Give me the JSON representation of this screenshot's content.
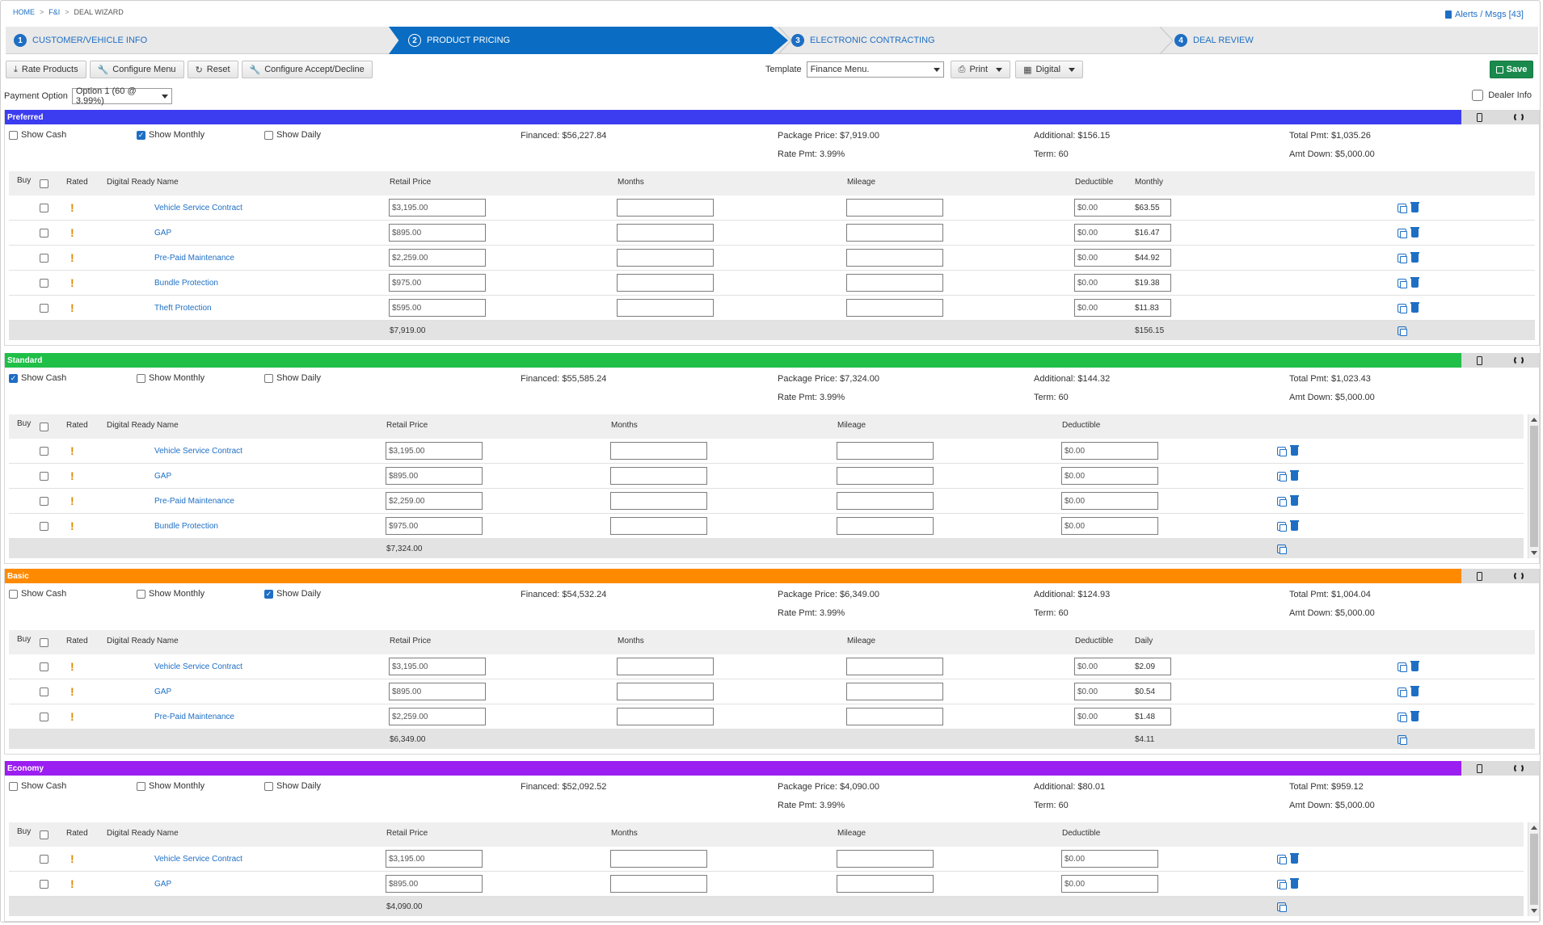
{
  "breadcrumb": [
    "HOME",
    "F&I",
    "DEAL WIZARD"
  ],
  "alerts": "Alerts / Msgs [43]",
  "wizard": [
    {
      "num": "1",
      "label": "CUSTOMER/VEHICLE INFO"
    },
    {
      "num": "2",
      "label": "PRODUCT PRICING"
    },
    {
      "num": "3",
      "label": "ELECTRONIC CONTRACTING"
    },
    {
      "num": "4",
      "label": "DEAL REVIEW"
    }
  ],
  "toolbar": {
    "rate_products": "Rate Products",
    "configure_menu": "Configure Menu",
    "reset": "Reset",
    "configure_accept": "Configure Accept/Decline",
    "template_label": "Template",
    "template_value": "Finance Menu.",
    "print": "Print",
    "digital": "Digital",
    "save": "Save"
  },
  "payment_option": {
    "label": "Payment Option",
    "value": "Option 1 (60 @ 3.99%)"
  },
  "dealer_info": "Dealer Info",
  "labels": {
    "show_cash": "Show Cash",
    "show_monthly": "Show Monthly",
    "show_daily": "Show Daily",
    "buy": "Buy",
    "rated": "Rated",
    "digital_ready": "Digital Ready",
    "name": "Name",
    "retail_price": "Retail Price",
    "months": "Months",
    "mileage": "Mileage",
    "deductible": "Deductible"
  },
  "packages": [
    {
      "name": "Preferred",
      "color": "#3c3cf0",
      "show_cash": false,
      "show_monthly": true,
      "show_daily": false,
      "financed": "Financed: $56,227.84",
      "package_price": "Package Price: $7,919.00",
      "rate_pmt": "Rate Pmt: 3.99%",
      "additional": "Additional: $156.15",
      "term": "Term: 60",
      "total_pmt": "Total Pmt: $1,035.26",
      "amt_down": "Amt Down: $5,000.00",
      "pay_col": "Monthly",
      "rows": [
        {
          "name": "Vehicle Service Contract",
          "price": "$3,195.00",
          "deductible": "$0.00",
          "pay": "$63.55"
        },
        {
          "name": "GAP",
          "price": "$895.00",
          "deductible": "$0.00",
          "pay": "$16.47"
        },
        {
          "name": "Pre-Paid Maintenance",
          "price": "$2,259.00",
          "deductible": "$0.00",
          "pay": "$44.92"
        },
        {
          "name": "Bundle Protection",
          "price": "$975.00",
          "deductible": "$0.00",
          "pay": "$19.38"
        },
        {
          "name": "Theft Protection",
          "price": "$595.00",
          "deductible": "$0.00",
          "pay": "$11.83"
        }
      ],
      "total_price": "$7,919.00",
      "total_pay": "$156.15"
    },
    {
      "name": "Standard",
      "color": "#1fbf48",
      "show_cash": true,
      "show_monthly": false,
      "show_daily": false,
      "financed": "Financed: $55,585.24",
      "package_price": "Package Price: $7,324.00",
      "rate_pmt": "Rate Pmt: 3.99%",
      "additional": "Additional: $144.32",
      "term": "Term: 60",
      "total_pmt": "Total Pmt: $1,023.43",
      "amt_down": "Amt Down: $5,000.00",
      "pay_col": "",
      "rows": [
        {
          "name": "Vehicle Service Contract",
          "price": "$3,195.00",
          "deductible": "$0.00",
          "pay": ""
        },
        {
          "name": "GAP",
          "price": "$895.00",
          "deductible": "$0.00",
          "pay": ""
        },
        {
          "name": "Pre-Paid Maintenance",
          "price": "$2,259.00",
          "deductible": "$0.00",
          "pay": ""
        },
        {
          "name": "Bundle Protection",
          "price": "$975.00",
          "deductible": "$0.00",
          "pay": ""
        }
      ],
      "total_price": "$7,324.00",
      "total_pay": ""
    },
    {
      "name": "Basic",
      "color": "#ff8a00",
      "show_cash": false,
      "show_monthly": false,
      "show_daily": true,
      "financed": "Financed: $54,532.24",
      "package_price": "Package Price: $6,349.00",
      "rate_pmt": "Rate Pmt: 3.99%",
      "additional": "Additional: $124.93",
      "term": "Term: 60",
      "total_pmt": "Total Pmt: $1,004.04",
      "amt_down": "Amt Down: $5,000.00",
      "pay_col": "Daily",
      "rows": [
        {
          "name": "Vehicle Service Contract",
          "price": "$3,195.00",
          "deductible": "$0.00",
          "pay": "$2.09"
        },
        {
          "name": "GAP",
          "price": "$895.00",
          "deductible": "$0.00",
          "pay": "$0.54"
        },
        {
          "name": "Pre-Paid Maintenance",
          "price": "$2,259.00",
          "deductible": "$0.00",
          "pay": "$1.48"
        }
      ],
      "total_price": "$6,349.00",
      "total_pay": "$4.11"
    },
    {
      "name": "Economy",
      "color": "#9b1ff0",
      "show_cash": false,
      "show_monthly": false,
      "show_daily": false,
      "financed": "Financed: $52,092.52",
      "package_price": "Package Price: $4,090.00",
      "rate_pmt": "Rate Pmt: 3.99%",
      "additional": "Additional: $80.01",
      "term": "Term: 60",
      "total_pmt": "Total Pmt: $959.12",
      "amt_down": "Amt Down: $5,000.00",
      "pay_col": "",
      "rows": [
        {
          "name": "Vehicle Service Contract",
          "price": "$3,195.00",
          "deductible": "$0.00",
          "pay": ""
        },
        {
          "name": "GAP",
          "price": "$895.00",
          "deductible": "$0.00",
          "pay": ""
        }
      ],
      "total_price": "$4,090.00",
      "total_pay": ""
    }
  ]
}
